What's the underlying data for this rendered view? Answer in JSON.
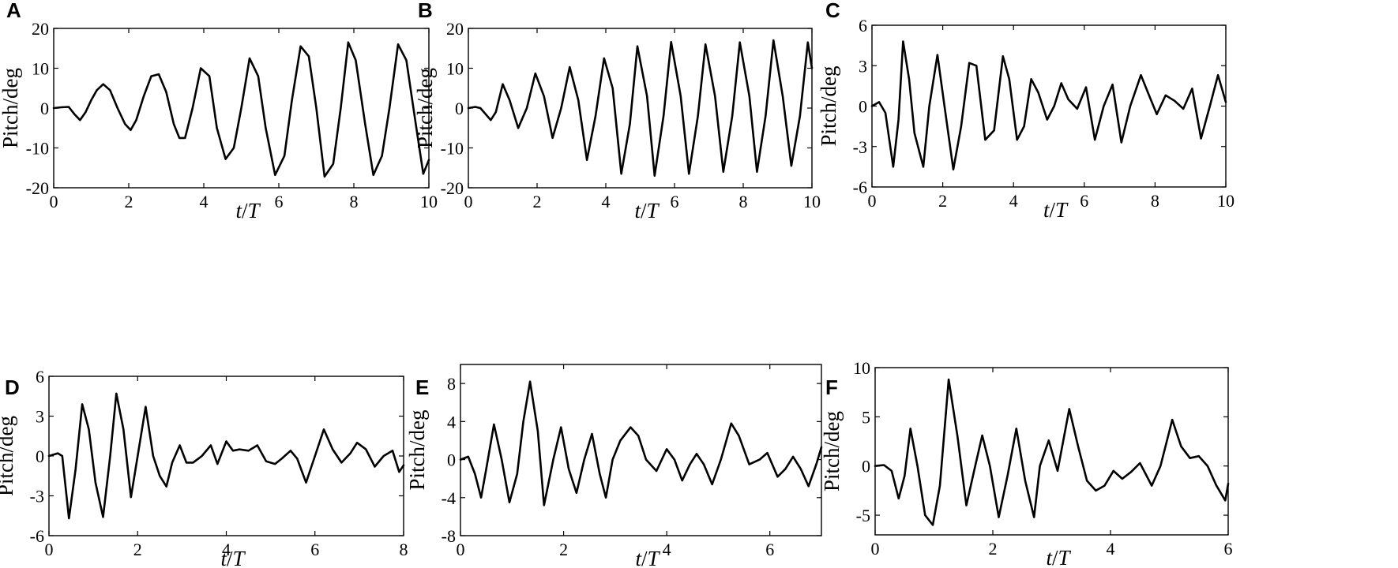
{
  "chart_data": [
    {
      "panel": "A",
      "type": "line",
      "xlabel_italic": "t",
      "xlabel_sep": "/",
      "xlabel_italic2": "T",
      "ylabel": "Pitch/deg",
      "xlim": [
        0,
        10
      ],
      "ylim": [
        -20,
        20
      ],
      "xticks": [
        0,
        2,
        4,
        6,
        8,
        10
      ],
      "yticks": [
        -20,
        -10,
        0,
        10,
        20
      ],
      "x": [
        0,
        0.2,
        0.4,
        0.55,
        0.7,
        0.85,
        1.0,
        1.15,
        1.32,
        1.5,
        1.7,
        1.9,
        2.05,
        2.2,
        2.4,
        2.6,
        2.8,
        3.0,
        3.2,
        3.35,
        3.5,
        3.7,
        3.92,
        4.15,
        4.35,
        4.58,
        4.8,
        5.0,
        5.22,
        5.45,
        5.65,
        5.9,
        6.15,
        6.35,
        6.58,
        6.8,
        7.0,
        7.22,
        7.45,
        7.65,
        7.85,
        8.05,
        8.3,
        8.52,
        8.75,
        8.95,
        9.18,
        9.4,
        9.65,
        9.85,
        10.0
      ],
      "y": [
        0,
        0.2,
        0.3,
        -1.5,
        -3.0,
        -1.0,
        2.0,
        4.5,
        6.0,
        4.5,
        0.0,
        -4.0,
        -5.5,
        -3.0,
        3.0,
        8.0,
        8.5,
        4.0,
        -4.0,
        -7.5,
        -7.5,
        0.0,
        10.0,
        8.0,
        -5.0,
        -12.8,
        -10.0,
        0.0,
        12.5,
        8.0,
        -5.0,
        -16.8,
        -12.0,
        2.0,
        15.5,
        13.0,
        0.0,
        -17.2,
        -14.0,
        0.0,
        16.5,
        12.0,
        -4.0,
        -16.8,
        -12.0,
        0.0,
        16.0,
        12.0,
        -4.0,
        -16.5,
        -13.0
      ]
    },
    {
      "panel": "B",
      "type": "line",
      "xlabel_italic": "t",
      "xlabel_sep": "/",
      "xlabel_italic2": "T",
      "ylabel": "Pitch/deg",
      "xlim": [
        0,
        10
      ],
      "ylim": [
        -20,
        20
      ],
      "xticks": [
        0,
        2,
        4,
        6,
        8,
        10
      ],
      "yticks": [
        -20,
        -10,
        0,
        10,
        20
      ],
      "x": [
        0,
        0.2,
        0.35,
        0.5,
        0.65,
        0.8,
        1.0,
        1.2,
        1.45,
        1.7,
        1.95,
        2.2,
        2.45,
        2.7,
        2.95,
        3.2,
        3.45,
        3.7,
        3.95,
        4.2,
        4.45,
        4.7,
        4.92,
        5.2,
        5.42,
        5.68,
        5.9,
        6.18,
        6.42,
        6.68,
        6.9,
        7.18,
        7.42,
        7.68,
        7.9,
        8.18,
        8.4,
        8.65,
        8.88,
        9.15,
        9.4,
        9.65,
        9.88,
        10.0
      ],
      "y": [
        0,
        0.3,
        0.0,
        -1.5,
        -3.0,
        -1.0,
        6.0,
        2.0,
        -5.0,
        0.0,
        8.7,
        3.0,
        -7.5,
        0.0,
        10.3,
        2.0,
        -13.0,
        -2.0,
        12.5,
        5.0,
        -16.5,
        -4.0,
        15.5,
        3.0,
        -17.0,
        -2.0,
        16.6,
        3.0,
        -16.5,
        -2.0,
        16.0,
        3.0,
        -16.0,
        -2.0,
        16.5,
        3.0,
        -16.0,
        -2.0,
        17.0,
        3.0,
        -14.5,
        -2.0,
        16.5,
        10.0
      ]
    },
    {
      "panel": "C",
      "type": "line",
      "xlabel_italic": "t",
      "xlabel_sep": "/",
      "xlabel_italic2": "T",
      "ylabel": "Pitch/deg",
      "xlim": [
        0,
        10
      ],
      "ylim": [
        -6,
        6
      ],
      "xticks": [
        0,
        2,
        4,
        6,
        8,
        10
      ],
      "yticks": [
        -6,
        -3,
        0,
        3,
        6
      ],
      "x": [
        0,
        0.2,
        0.38,
        0.6,
        0.75,
        0.88,
        1.05,
        1.2,
        1.45,
        1.62,
        1.85,
        2.05,
        2.3,
        2.52,
        2.75,
        2.95,
        3.2,
        3.45,
        3.7,
        3.88,
        4.1,
        4.3,
        4.5,
        4.7,
        4.95,
        5.15,
        5.35,
        5.55,
        5.8,
        6.05,
        6.3,
        6.55,
        6.8,
        7.05,
        7.3,
        7.6,
        7.8,
        8.05,
        8.3,
        8.55,
        8.8,
        9.05,
        9.3,
        9.55,
        9.78,
        10.0
      ],
      "y": [
        0,
        0.3,
        -0.5,
        -4.5,
        -1.0,
        4.8,
        2.0,
        -2.0,
        -4.5,
        0.0,
        3.8,
        0.0,
        -4.7,
        -1.5,
        3.2,
        3.0,
        -2.5,
        -1.8,
        3.7,
        2.0,
        -2.5,
        -1.5,
        2.0,
        1.0,
        -1.0,
        0.0,
        1.7,
        0.5,
        -0.2,
        1.4,
        -2.5,
        0.0,
        1.6,
        -2.7,
        0.0,
        2.3,
        1.0,
        -0.6,
        0.8,
        0.4,
        -0.2,
        1.3,
        -2.4,
        0.0,
        2.3,
        0.3
      ]
    },
    {
      "panel": "D",
      "type": "line",
      "xlabel_italic": "t",
      "xlabel_sep": "/",
      "xlabel_italic2": "T",
      "ylabel": "Pitch/deg",
      "xlim": [
        0,
        8
      ],
      "ylim": [
        -6,
        6
      ],
      "xticks": [
        0,
        2,
        4,
        6,
        8
      ],
      "yticks": [
        -6,
        -3,
        0,
        3,
        6
      ],
      "x": [
        0,
        0.2,
        0.3,
        0.45,
        0.6,
        0.75,
        0.9,
        1.05,
        1.22,
        1.38,
        1.52,
        1.68,
        1.85,
        2.0,
        2.18,
        2.35,
        2.5,
        2.65,
        2.78,
        2.95,
        3.1,
        3.25,
        3.45,
        3.65,
        3.8,
        4.0,
        4.15,
        4.3,
        4.5,
        4.7,
        4.9,
        5.1,
        5.25,
        5.45,
        5.6,
        5.8,
        6.0,
        6.2,
        6.4,
        6.6,
        6.8,
        6.95,
        7.15,
        7.35,
        7.55,
        7.75,
        7.9,
        8.0
      ],
      "y": [
        0,
        0.2,
        0.0,
        -4.7,
        -1.0,
        3.9,
        2.0,
        -2.0,
        -4.6,
        0.0,
        4.7,
        2.0,
        -3.1,
        0.0,
        3.7,
        0.0,
        -1.5,
        -2.3,
        -0.5,
        0.8,
        -0.5,
        -0.5,
        0.0,
        0.8,
        -0.6,
        1.1,
        0.4,
        0.5,
        0.4,
        0.8,
        -0.4,
        -0.6,
        -0.2,
        0.4,
        -0.2,
        -2.0,
        0.0,
        2.0,
        0.5,
        -0.5,
        0.2,
        1.0,
        0.5,
        -0.8,
        0.0,
        0.4,
        -1.2,
        -0.7
      ]
    },
    {
      "panel": "E",
      "type": "line",
      "xlabel_italic": "t",
      "xlabel_sep": "/",
      "xlabel_italic2": "T",
      "ylabel": "Pitch/deg",
      "xlim": [
        0,
        7
      ],
      "ylim": [
        -8,
        10
      ],
      "xticks": [
        0,
        2,
        4,
        6
      ],
      "yticks": [
        -8,
        -4,
        0,
        4,
        8
      ],
      "x": [
        0,
        0.15,
        0.28,
        0.4,
        0.5,
        0.65,
        0.8,
        0.95,
        1.1,
        1.22,
        1.35,
        1.5,
        1.62,
        1.8,
        1.95,
        2.1,
        2.25,
        2.4,
        2.55,
        2.7,
        2.82,
        2.95,
        3.1,
        3.3,
        3.45,
        3.6,
        3.8,
        4.0,
        4.15,
        4.3,
        4.45,
        4.58,
        4.72,
        4.88,
        5.05,
        5.25,
        5.4,
        5.6,
        5.8,
        5.95,
        6.15,
        6.3,
        6.45,
        6.6,
        6.75,
        6.9,
        7.0
      ],
      "y": [
        0,
        0.3,
        -1.5,
        -4.0,
        -1.0,
        3.7,
        0.0,
        -4.5,
        -1.5,
        4.0,
        8.2,
        3.0,
        -4.8,
        0.0,
        3.4,
        -1.0,
        -3.5,
        0.0,
        2.7,
        -1.5,
        -4.0,
        0.0,
        2.0,
        3.4,
        2.5,
        0.0,
        -1.2,
        1.1,
        0.0,
        -2.2,
        -0.5,
        0.6,
        -0.5,
        -2.6,
        0.0,
        3.8,
        2.5,
        -0.5,
        0.0,
        0.7,
        -1.8,
        -1.0,
        0.3,
        -1.0,
        -2.8,
        -0.5,
        1.3
      ]
    },
    {
      "panel": "F",
      "type": "line",
      "xlabel_italic": "t",
      "xlabel_sep": "/",
      "xlabel_italic2": "T",
      "ylabel": "Pitch/deg",
      "xlim": [
        0,
        6
      ],
      "ylim": [
        -7,
        10
      ],
      "xticks": [
        0,
        2,
        4,
        6
      ],
      "yticks": [
        -5,
        0,
        5,
        10
      ],
      "x": [
        0,
        0.15,
        0.28,
        0.4,
        0.5,
        0.6,
        0.72,
        0.85,
        0.98,
        1.1,
        1.25,
        1.4,
        1.55,
        1.7,
        1.82,
        1.95,
        2.1,
        2.25,
        2.4,
        2.55,
        2.7,
        2.8,
        2.95,
        3.1,
        3.3,
        3.45,
        3.6,
        3.75,
        3.9,
        4.05,
        4.2,
        4.35,
        4.5,
        4.7,
        4.85,
        5.05,
        5.2,
        5.35,
        5.5,
        5.65,
        5.8,
        5.95,
        6.0
      ],
      "y": [
        0,
        0.1,
        -0.5,
        -3.3,
        -1.0,
        3.8,
        0.0,
        -5.0,
        -6.0,
        -2.0,
        8.8,
        3.0,
        -4.0,
        0.0,
        3.1,
        0.0,
        -5.2,
        -1.0,
        3.8,
        -1.5,
        -5.2,
        0.0,
        2.6,
        -0.5,
        5.8,
        2.0,
        -1.5,
        -2.5,
        -2.0,
        -0.5,
        -1.3,
        -0.6,
        0.3,
        -2.0,
        0.0,
        4.7,
        2.0,
        0.8,
        1.0,
        0.0,
        -2.0,
        -3.5,
        -1.8
      ]
    }
  ]
}
